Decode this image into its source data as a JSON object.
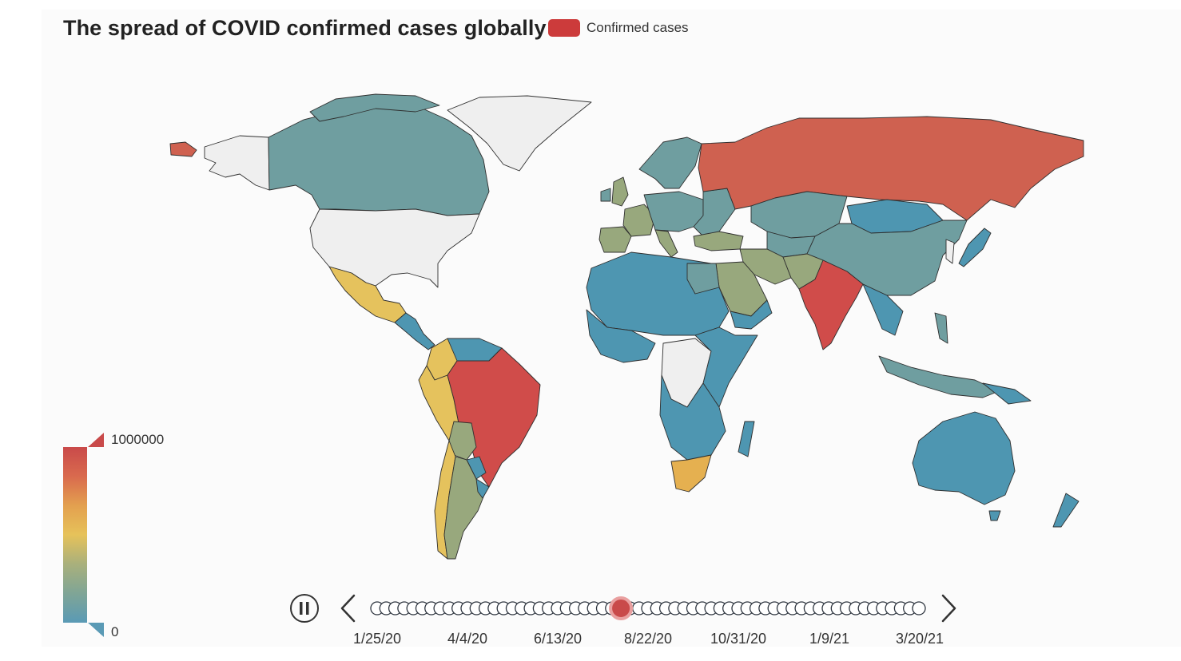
{
  "title": "The spread of COVID confirmed cases globally",
  "legend": {
    "label": "Confirmed cases",
    "color": "#cc3b3b"
  },
  "visual_map": {
    "min_label": "0",
    "max_label": "1000000",
    "colors": [
      "#5a9ab5",
      "#7fa596",
      "#a9b07c",
      "#e6c25a",
      "#e3a04f",
      "#d96a4e",
      "#c94a4a"
    ]
  },
  "map_colors": {
    "no_data": "#efefef",
    "very_high": "#cf6150",
    "high": "#d04c4a",
    "mid_high": "#e5b050",
    "mid": "#e5c25d",
    "low_mid": "#98a87d",
    "low": "#6f9ea0",
    "very_low": "#4e96b1"
  },
  "timeline": {
    "labels": [
      "1/25/20",
      "4/4/20",
      "6/13/20",
      "8/22/20",
      "10/31/20",
      "1/9/21",
      "3/20/21"
    ],
    "total_steps": 61,
    "current_index": 27,
    "play_state": "pause-icon",
    "prev": "chevron-left-icon",
    "next": "chevron-right-icon"
  }
}
